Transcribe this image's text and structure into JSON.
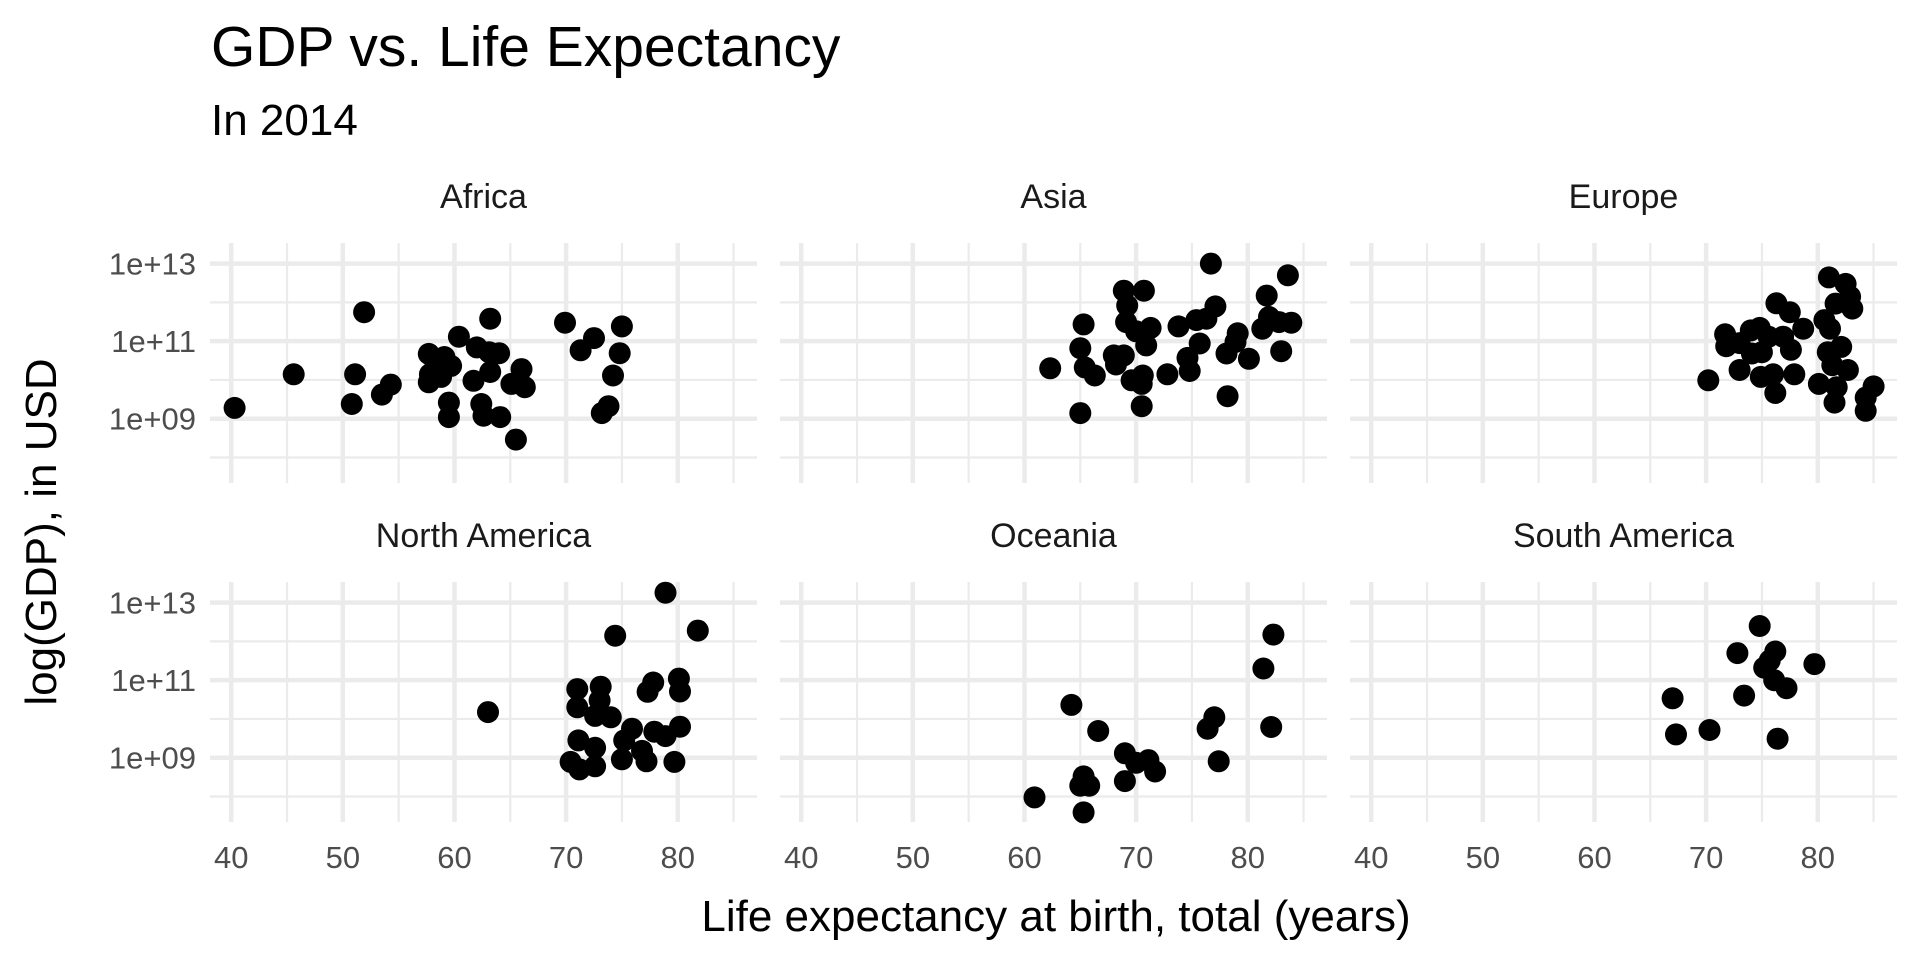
{
  "chart_data": {
    "type": "scatter",
    "title": "GDP vs. Life Expectancy",
    "subtitle": "In 2014",
    "xlabel": "Life expectancy at birth, total (years)",
    "ylabel": "log(GDP), in USD",
    "y_scale": "log10",
    "xlim": [
      38.1,
      87.1
    ],
    "ylim": [
      22000000.0,
      34000000000000.0
    ],
    "x_ticks": [
      40,
      50,
      60,
      70,
      80
    ],
    "y_ticks": [
      "1e+09",
      "1e+11",
      "1e+13"
    ],
    "grid": true,
    "facet_layout": {
      "rows": 2,
      "cols": 3
    },
    "point_color": "#000000",
    "panels": [
      {
        "name": "Africa",
        "points": [
          [
            40.3,
            1900000000.0
          ],
          [
            45.6,
            14000000000.0
          ],
          [
            51.9,
            560000000000.0
          ],
          [
            51.1,
            14000000000.0
          ],
          [
            50.8,
            2400000000.0
          ],
          [
            53.5,
            4200000000.0
          ],
          [
            54.3,
            7600000000.0
          ],
          [
            57.7,
            47000000000.0
          ],
          [
            59.1,
            39000000000.0
          ],
          [
            60.4,
            130000000000.0
          ],
          [
            57.8,
            14000000000.0
          ],
          [
            58.3,
            23000000000.0
          ],
          [
            59.7,
            23000000000.0
          ],
          [
            57.7,
            8700000000.0
          ],
          [
            58.8,
            12000000000.0
          ],
          [
            59.5,
            2600000000.0
          ],
          [
            59.5,
            1100000000.0
          ],
          [
            62.0,
            69000000000.0
          ],
          [
            63.2,
            380000000000.0
          ],
          [
            63.1,
            52000000000.0
          ],
          [
            64.0,
            49000000000.0
          ],
          [
            63.2,
            16000000000.0
          ],
          [
            61.7,
            9500000000.0
          ],
          [
            62.4,
            2400000000.0
          ],
          [
            62.6,
            1200000000.0
          ],
          [
            64.1,
            1100000000.0
          ],
          [
            66.0,
            19000000000.0
          ],
          [
            65.1,
            7900000000.0
          ],
          [
            66.3,
            6500000000.0
          ],
          [
            65.5,
            290000000.0
          ],
          [
            69.9,
            300000000000.0
          ],
          [
            72.5,
            120000000000.0
          ],
          [
            71.3,
            58000000000.0
          ],
          [
            75.0,
            240000000000.0
          ],
          [
            74.8,
            49000000000.0
          ],
          [
            74.2,
            13000000000.0
          ],
          [
            73.8,
            2100000000.0
          ],
          [
            73.2,
            1400000000.0
          ]
        ]
      },
      {
        "name": "Asia",
        "points": [
          [
            62.3,
            20000000000.0
          ],
          [
            65.3,
            270000000000.0
          ],
          [
            65.0,
            66000000000.0
          ],
          [
            65.4,
            21000000000.0
          ],
          [
            66.3,
            13000000000.0
          ],
          [
            65.0,
            1400000000.0
          ],
          [
            68.9,
            2000000000000.0
          ],
          [
            70.7,
            2000000000000.0
          ],
          [
            69.2,
            830000000000.0
          ],
          [
            69.1,
            310000000000.0
          ],
          [
            70.0,
            180000000000.0
          ],
          [
            71.3,
            220000000000.0
          ],
          [
            70.9,
            78000000000.0
          ],
          [
            68.0,
            43000000000.0
          ],
          [
            68.9,
            43000000000.0
          ],
          [
            68.2,
            25000000000.0
          ],
          [
            69.6,
            9800000000.0
          ],
          [
            70.6,
            13000000000.0
          ],
          [
            70.5,
            7900000000.0
          ],
          [
            70.5,
            2100000000.0
          ],
          [
            72.8,
            14000000000.0
          ],
          [
            73.8,
            240000000000.0
          ],
          [
            75.4,
            350000000000.0
          ],
          [
            76.3,
            380000000000.0
          ],
          [
            77.1,
            790000000000.0
          ],
          [
            76.7,
            10000000000000.0
          ],
          [
            75.7,
            87000000000.0
          ],
          [
            74.6,
            37000000000.0
          ],
          [
            74.8,
            17000000000.0
          ],
          [
            78.1,
            48000000000.0
          ],
          [
            79.1,
            160000000000.0
          ],
          [
            78.9,
            95000000000.0
          ],
          [
            80.1,
            35000000000.0
          ],
          [
            78.2,
            3800000000.0
          ],
          [
            81.7,
            1500000000000.0
          ],
          [
            83.6,
            5000000000000.0
          ],
          [
            81.9,
            420000000000.0
          ],
          [
            81.3,
            210000000000.0
          ],
          [
            82.8,
            310000000000.0
          ],
          [
            83.9,
            300000000000.0
          ],
          [
            83.0,
            55000000000.0
          ]
        ]
      },
      {
        "name": "Europe",
        "points": [
          [
            70.2,
            9800000000.0
          ],
          [
            71.7,
            150000000000.0
          ],
          [
            71.8,
            74000000000.0
          ],
          [
            73.0,
            89000000000.0
          ],
          [
            73.0,
            18000000000.0
          ],
          [
            74.8,
            220000000000.0
          ],
          [
            75.6,
            130000000000.0
          ],
          [
            76.9,
            130000000000.0
          ],
          [
            77.6,
            60000000000.0
          ],
          [
            74.1,
            48000000000.0
          ],
          [
            75.0,
            52000000000.0
          ],
          [
            74.9,
            12000000000.0
          ],
          [
            76.2,
            4600000000.0
          ],
          [
            76.0,
            14000000000.0
          ],
          [
            77.9,
            14000000000.0
          ],
          [
            76.3,
            950000000000.0
          ],
          [
            77.5,
            560000000000.0
          ],
          [
            78.7,
            210000000000.0
          ],
          [
            81.0,
            4400000000000.0
          ],
          [
            82.5,
            3000000000000.0
          ],
          [
            82.9,
            1400000000000.0
          ],
          [
            83.1,
            690000000000.0
          ],
          [
            81.6,
            930000000000.0
          ],
          [
            80.6,
            350000000000.0
          ],
          [
            81.1,
            210000000000.0
          ],
          [
            82.1,
            71000000000.0
          ],
          [
            80.9,
            52000000000.0
          ],
          [
            81.3,
            24000000000.0
          ],
          [
            82.7,
            18000000000.0
          ],
          [
            80.1,
            7900000000.0
          ],
          [
            81.7,
            6500000000.0
          ],
          [
            81.5,
            2600000000.0
          ],
          [
            85.0,
            6800000000.0
          ],
          [
            84.3,
            3500000000.0
          ],
          [
            84.3,
            1600000000.0
          ],
          [
            74.0,
            190000000000.0
          ]
        ]
      },
      {
        "name": "North America",
        "points": [
          [
            63.0,
            15000000000.0
          ],
          [
            71.0,
            59000000000.0
          ],
          [
            73.1,
            68000000000.0
          ],
          [
            73.0,
            30000000000.0
          ],
          [
            71.0,
            20000000000.0
          ],
          [
            72.6,
            12000000000.0
          ],
          [
            74.0,
            11000000000.0
          ],
          [
            74.4,
            1400000000000.0
          ],
          [
            78.9,
            18000000000000.0
          ],
          [
            81.8,
            1900000000000.0
          ],
          [
            77.8,
            87000000000.0
          ],
          [
            77.3,
            50000000000.0
          ],
          [
            80.1,
            110000000000.0
          ],
          [
            80.2,
            51000000000.0
          ],
          [
            75.9,
            5600000000.0
          ],
          [
            75.2,
            2800000000.0
          ],
          [
            77.9,
            4700000000.0
          ],
          [
            78.9,
            3600000000.0
          ],
          [
            80.2,
            6300000000.0
          ],
          [
            71.1,
            2800000000.0
          ],
          [
            72.6,
            1800000000.0
          ],
          [
            70.4,
            780000000.0
          ],
          [
            71.2,
            500000000.0
          ],
          [
            72.6,
            600000000.0
          ],
          [
            75.0,
            910000000.0
          ],
          [
            76.8,
            1500000000.0
          ],
          [
            77.2,
            810000000.0
          ],
          [
            79.7,
            780000000.0
          ]
        ]
      },
      {
        "name": "Oceania",
        "points": [
          [
            60.9,
            95000000.0
          ],
          [
            64.2,
            23000000000.0
          ],
          [
            66.6,
            4900000000.0
          ],
          [
            65.3,
            330000000.0
          ],
          [
            65.0,
            190000000.0
          ],
          [
            65.8,
            190000000.0
          ],
          [
            65.3,
            39000000.0
          ],
          [
            69.0,
            1300000000.0
          ],
          [
            69.0,
            250000000.0
          ],
          [
            70.0,
            740000000.0
          ],
          [
            71.1,
            870000000.0
          ],
          [
            71.7,
            440000000.0
          ],
          [
            77.0,
            11000000000.0
          ],
          [
            76.4,
            5600000000.0
          ],
          [
            77.4,
            810000000.0
          ],
          [
            82.3,
            1500000000000.0
          ],
          [
            81.4,
            200000000000.0
          ],
          [
            82.1,
            6200000000.0
          ]
        ]
      },
      {
        "name": "South America",
        "points": [
          [
            67.0,
            34000000000.0
          ],
          [
            67.3,
            4000000000.0
          ],
          [
            70.3,
            5200000000.0
          ],
          [
            72.8,
            500000000000.0
          ],
          [
            74.8,
            2500000000000.0
          ],
          [
            76.2,
            550000000000.0
          ],
          [
            75.7,
            320000000000.0
          ],
          [
            75.2,
            210000000000.0
          ],
          [
            76.1,
            100000000000.0
          ],
          [
            77.2,
            62000000000.0
          ],
          [
            73.4,
            40000000000.0
          ],
          [
            79.7,
            260000000000.0
          ],
          [
            76.4,
            3100000000.0
          ]
        ]
      }
    ]
  }
}
